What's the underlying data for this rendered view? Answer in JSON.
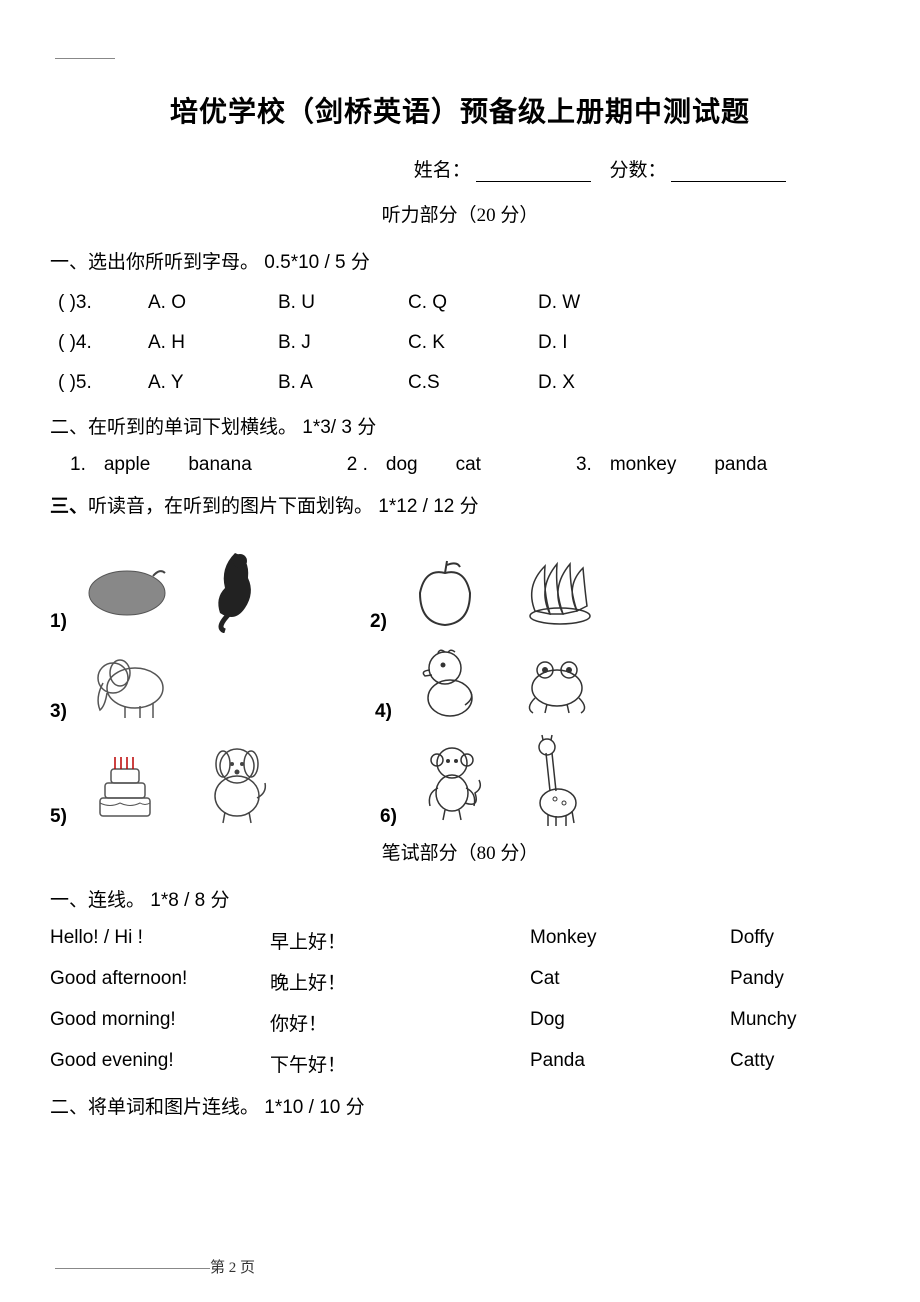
{
  "title": "培优学校（剑桥英语）预备级上册期中测试题",
  "name_label": "姓名：",
  "score_label": "分数：",
  "listening_section": "听力部分（20 分）",
  "q1_heading": "一、选出你所听到字母。 0.5*10 / 5 分",
  "mc": [
    {
      "paren": "(      )3.",
      "opts": [
        "A.  O",
        "B.  U",
        "C. Q",
        "D. W"
      ]
    },
    {
      "paren": "(      )4.",
      "opts": [
        "A.  H",
        "B.  J",
        "C. K",
        "D. I"
      ]
    },
    {
      "paren": "(      )5.",
      "opts": [
        "A.  Y",
        "B.  A",
        "C.S",
        "D. X"
      ]
    }
  ],
  "q2_heading": "二、在听到的单词下划横线。 1*3/ 3 分",
  "words": [
    {
      "n": "1.",
      "a": "apple",
      "b": "banana"
    },
    {
      "n": "2 .",
      "a": "dog",
      "b": "cat"
    },
    {
      "n": "3.",
      "a": "monkey",
      "b": "panda"
    }
  ],
  "q3_heading_prefix": "三、",
  "q3_heading_rest": "听读音，在听到的图片下面划钩。 1*12 / 12 分",
  "pic_rows": [
    {
      "l1": "1)",
      "l2": "2)"
    },
    {
      "l1": "3)",
      "l2": "4)"
    },
    {
      "l1": "5)",
      "l2": "6)"
    }
  ],
  "written_section": "笔试部分（80 分）",
  "q4_heading": "一、连线。 1*8 / 8 分",
  "match": [
    {
      "c1": "Hello! / Hi !",
      "c2": "早上好！",
      "c3": "Monkey",
      "c4": "Doffy"
    },
    {
      "c1": "Good afternoon!",
      "c2": "晚上好！",
      "c3": "Cat",
      "c4": "Pandy"
    },
    {
      "c1": "Good morning!",
      "c2": "你好！",
      "c3": "Dog",
      "c4": "Munchy"
    },
    {
      "c1": "Good evening!",
      "c2": "下午好！",
      "c3": "Panda",
      "c4": "Catty"
    }
  ],
  "q5_heading": "二、将单词和图片连线。 1*10 / 10 分",
  "footer": "第 2 页"
}
